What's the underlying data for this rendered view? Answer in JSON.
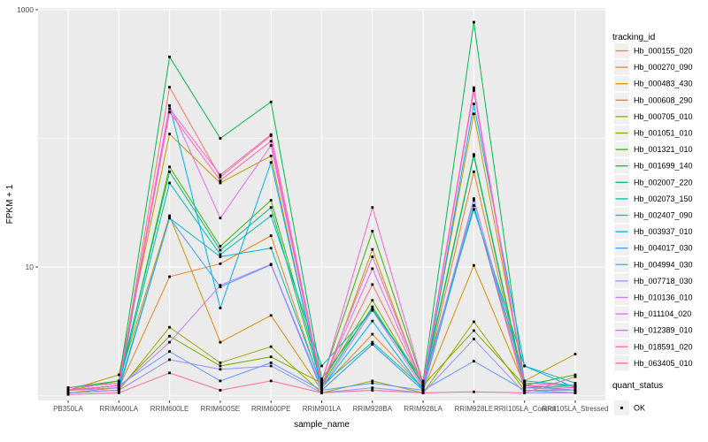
{
  "figure": {
    "y_axis_title": "FPKM + 1",
    "x_axis_title": "sample_name",
    "y_tick_labels": [
      "1000",
      "10"
    ]
  },
  "chart_data": {
    "type": "line",
    "title": "",
    "xlabel": "sample_name",
    "ylabel": "FPKM + 1",
    "y_scale": "log10",
    "ylim": [
      0.95,
      1100
    ],
    "y_ticks_labeled": [
      1000,
      10
    ],
    "y_gridlines_minor": [
      100,
      1
    ],
    "grid": true,
    "panel_bg": "#EBEBEB",
    "grid_color": "#FFFFFF",
    "point_color": "#000000",
    "point_shape": "square",
    "legend_position": "right",
    "legend_title": "tracking_id",
    "quant_legend": {
      "title": "quant_status",
      "items": [
        "OK"
      ]
    },
    "categories": [
      "PB350LA",
      "RRIM600LA",
      "RRIM600LE",
      "RRIM600SE",
      "RRIM600PE",
      "RRIM901LA",
      "RRIM928BA",
      "RRIM928LA",
      "RRIM928LE",
      "RRII105LA_Control",
      "RRII105LA_Stressed"
    ],
    "series": [
      {
        "name": "Hb_000155_020",
        "color": "#F8766D",
        "values": [
          1.1,
          1.2,
          250,
          50,
          105,
          1.2,
          7.3,
          1.2,
          30,
          1.1,
          1.1
        ]
      },
      {
        "name": "Hb_000270_090",
        "color": "#E88526",
        "values": [
          1.05,
          1.15,
          8.4,
          10.6,
          17.5,
          1.15,
          3.0,
          1.15,
          55,
          1.15,
          1.1
        ]
      },
      {
        "name": "Hb_000483_430",
        "color": "#D89000",
        "values": [
          1.1,
          1.3,
          25,
          2.6,
          4.2,
          1.1,
          2.5,
          1.1,
          10.3,
          1.2,
          1.15
        ]
      },
      {
        "name": "Hb_000608_290",
        "color": "#C09B00",
        "values": [
          1.1,
          1.45,
          108,
          45,
          73,
          1.1,
          13.7,
          1.15,
          155,
          1.3,
          2.1
        ]
      },
      {
        "name": "Hb_000705_010",
        "color": "#A3A500",
        "values": [
          1.05,
          1.1,
          3.4,
          1.8,
          2.4,
          1.05,
          1.3,
          1.05,
          3.75,
          1.1,
          1.05
        ]
      },
      {
        "name": "Hb_001051_010",
        "color": "#7CAE00",
        "values": [
          1.1,
          1.15,
          2.9,
          1.7,
          2.0,
          1.25,
          5.5,
          1.2,
          3.2,
          1.2,
          1.1
        ]
      },
      {
        "name": "Hb_001321_010",
        "color": "#39B600",
        "values": [
          1.1,
          1.2,
          60,
          14.5,
          33,
          1.3,
          19,
          1.25,
          75,
          1.2,
          1.45
        ]
      },
      {
        "name": "Hb_001699_140",
        "color": "#00BB4E",
        "values": [
          1.15,
          1.3,
          430,
          100,
          192,
          1.35,
          4.7,
          1.3,
          800,
          1.25,
          1.2
        ]
      },
      {
        "name": "Hb_002007_220",
        "color": "#00BF7D",
        "values": [
          1.15,
          1.25,
          55,
          13.5,
          29,
          1.2,
          4.9,
          1.2,
          73,
          1.15,
          1.2
        ]
      },
      {
        "name": "Hb_002073_150",
        "color": "#00C1A7",
        "values": [
          1.1,
          1.2,
          45,
          12.5,
          25,
          1.7,
          4.6,
          1.3,
          28,
          1.7,
          1.25
        ]
      },
      {
        "name": "Hb_002407_090",
        "color": "#00BFC4",
        "values": [
          1.1,
          1.15,
          24,
          12.0,
          14,
          1.2,
          2.6,
          1.15,
          33,
          1.3,
          1.2
        ]
      },
      {
        "name": "Hb_003937_010",
        "color": "#00B0F6",
        "values": [
          1.05,
          1.1,
          180,
          4.8,
          65,
          1.15,
          3.8,
          1.1,
          185,
          1.7,
          1.15
        ]
      },
      {
        "name": "Hb_004017_030",
        "color": "#35A2FF",
        "values": [
          1.05,
          1.1,
          24,
          7.0,
          10.4,
          1.1,
          2.5,
          1.1,
          30,
          1.2,
          1.1
        ]
      },
      {
        "name": "Hb_004994_030",
        "color": "#619CFF",
        "values": [
          1.1,
          1.2,
          2.2,
          1.3,
          1.8,
          1.1,
          1.25,
          1.1,
          1.85,
          1.1,
          1.05
        ]
      },
      {
        "name": "Hb_007718_030",
        "color": "#9590FF",
        "values": [
          1.05,
          1.1,
          1.9,
          1.6,
          1.7,
          1.05,
          1.15,
          1.05,
          2.75,
          1.05,
          1.05
        ]
      },
      {
        "name": "Hb_010136_010",
        "color": "#C77CFF",
        "values": [
          1.1,
          1.15,
          2.6,
          7.2,
          10.5,
          1.15,
          4.6,
          1.15,
          34,
          1.15,
          1.1
        ]
      },
      {
        "name": "Hb_011104_020",
        "color": "#E76BF3",
        "values": [
          1.1,
          1.2,
          180,
          24,
          88,
          1.2,
          9.7,
          1.2,
          240,
          1.2,
          1.15
        ]
      },
      {
        "name": "Hb_012389_010",
        "color": "#FA62DB",
        "values": [
          1.15,
          1.25,
          170,
          52,
          107,
          1.25,
          29,
          1.25,
          248,
          1.25,
          1.2
        ]
      },
      {
        "name": "Hb_018591_020",
        "color": "#FF62BC",
        "values": [
          1.1,
          1.2,
          160,
          47,
          95,
          1.2,
          12,
          1.2,
          235,
          1.2,
          1.15
        ]
      },
      {
        "name": "Hb_063405_010",
        "color": "#FF6A98",
        "values": [
          1.02,
          1.05,
          1.5,
          1.1,
          1.3,
          1.05,
          1.1,
          1.05,
          1.07,
          1.05,
          1.4
        ]
      }
    ]
  }
}
